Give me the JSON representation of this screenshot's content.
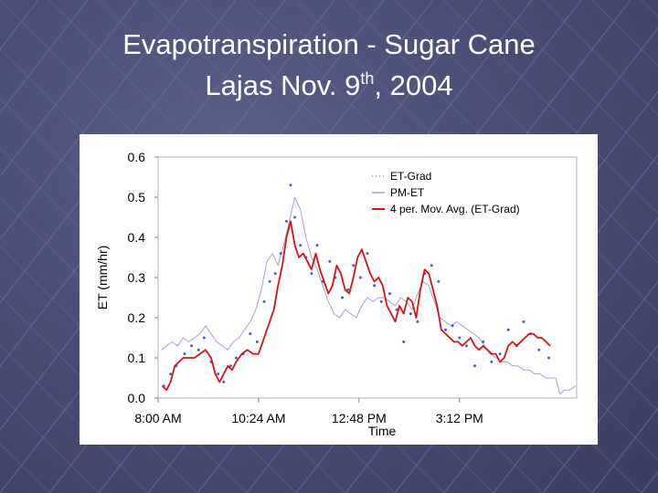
{
  "title": {
    "line1": "Evapotranspiration - Sugar Cane",
    "line2_prefix": "Lajas Nov. 9",
    "line2_sup": "th",
    "line2_suffix": ", 2004"
  },
  "colors": {
    "et_grad": "#4a5bd6",
    "pm_et": "#9aa3e6",
    "mov_avg": "#dd1111"
  },
  "chart_data": {
    "type": "line",
    "title": "",
    "xlabel": "Time",
    "ylabel": "ET (mm/hr)",
    "ylim": [
      0,
      0.6
    ],
    "xlim_minutes": [
      480,
      1080
    ],
    "y_ticks": [
      "0.0",
      "0.1",
      "0.2",
      "0.3",
      "0.4",
      "0.5",
      "0.6"
    ],
    "x_ticks": [
      {
        "label": "8:00 AM",
        "minutes": 480
      },
      {
        "label": "10:24 AM",
        "minutes": 624
      },
      {
        "label": "12:48 PM",
        "minutes": 768
      },
      {
        "label": "3:12 PM",
        "minutes": 912
      }
    ],
    "legend": {
      "position": "top-right",
      "entries": [
        "ET-Grad",
        "PM-ET",
        "4 per. Mov. Avg. (ET-Grad)"
      ]
    },
    "series": [
      {
        "name": "PM-ET",
        "style": "line",
        "x": [
          485,
          492,
          500,
          508,
          516,
          524,
          532,
          540,
          548,
          556,
          564,
          572,
          580,
          588,
          596,
          604,
          612,
          620,
          628,
          636,
          644,
          652,
          660,
          668,
          676,
          684,
          692,
          700,
          708,
          716,
          724,
          732,
          740,
          748,
          756,
          764,
          772,
          780,
          788,
          796,
          804,
          812,
          820,
          828,
          836,
          844,
          852,
          860,
          868,
          876,
          884,
          892,
          900,
          908,
          916,
          924,
          932,
          940,
          948,
          956,
          964,
          972,
          980,
          988,
          996,
          1004,
          1012,
          1020,
          1028,
          1036,
          1044,
          1050,
          1056,
          1062,
          1070,
          1078
        ],
        "values": [
          0.12,
          0.13,
          0.14,
          0.13,
          0.15,
          0.14,
          0.15,
          0.16,
          0.18,
          0.16,
          0.14,
          0.13,
          0.12,
          0.14,
          0.15,
          0.17,
          0.19,
          0.22,
          0.27,
          0.34,
          0.36,
          0.33,
          0.38,
          0.44,
          0.5,
          0.47,
          0.4,
          0.35,
          0.32,
          0.28,
          0.24,
          0.21,
          0.2,
          0.22,
          0.21,
          0.2,
          0.23,
          0.25,
          0.24,
          0.25,
          0.25,
          0.24,
          0.23,
          0.25,
          0.24,
          0.22,
          0.26,
          0.29,
          0.28,
          0.24,
          0.2,
          0.19,
          0.18,
          0.19,
          0.18,
          0.17,
          0.16,
          0.15,
          0.13,
          0.11,
          0.1,
          0.09,
          0.09,
          0.08,
          0.08,
          0.07,
          0.07,
          0.06,
          0.06,
          0.05,
          0.05,
          0.05,
          0.01,
          0.02,
          0.02,
          0.03
        ]
      },
      {
        "name": "ET-Grad",
        "style": "points",
        "x": [
          488,
          498,
          506,
          518,
          528,
          538,
          546,
          556,
          566,
          574,
          584,
          592,
          602,
          612,
          622,
          632,
          640,
          648,
          656,
          664,
          670,
          676,
          684,
          692,
          700,
          708,
          716,
          726,
          734,
          744,
          752,
          760,
          770,
          780,
          790,
          800,
          812,
          822,
          832,
          842,
          852,
          862,
          872,
          882,
          892,
          902,
          912,
          922,
          934,
          946,
          958,
          970,
          982,
          994,
          1004,
          1014,
          1026,
          1040
        ],
        "values": [
          0.03,
          0.06,
          0.08,
          0.11,
          0.13,
          0.12,
          0.15,
          0.09,
          0.06,
          0.04,
          0.08,
          0.1,
          0.11,
          0.16,
          0.14,
          0.24,
          0.29,
          0.31,
          0.36,
          0.44,
          0.53,
          0.45,
          0.38,
          0.35,
          0.31,
          0.38,
          0.29,
          0.34,
          0.3,
          0.25,
          0.27,
          0.33,
          0.3,
          0.36,
          0.28,
          0.24,
          0.26,
          0.22,
          0.14,
          0.21,
          0.19,
          0.31,
          0.33,
          0.29,
          0.17,
          0.18,
          0.15,
          0.13,
          0.08,
          0.14,
          0.09,
          0.11,
          0.17,
          0.13,
          0.19,
          0.16,
          0.12,
          0.1
        ]
      },
      {
        "name": "4 per. Mov. Avg. (ET-Grad)",
        "style": "line",
        "x": [
          486,
          492,
          498,
          504,
          510,
          516,
          524,
          532,
          540,
          548,
          556,
          562,
          568,
          574,
          580,
          586,
          592,
          600,
          608,
          616,
          624,
          632,
          640,
          646,
          652,
          658,
          664,
          670,
          676,
          682,
          688,
          694,
          700,
          706,
          712,
          718,
          724,
          730,
          736,
          742,
          748,
          754,
          760,
          766,
          772,
          778,
          784,
          790,
          796,
          802,
          808,
          814,
          820,
          826,
          832,
          838,
          844,
          850,
          856,
          862,
          868,
          874,
          880,
          886,
          892,
          898,
          904,
          910,
          916,
          922,
          928,
          934,
          940,
          946,
          952,
          958,
          964,
          970,
          976,
          982,
          988,
          994,
          1000,
          1006,
          1012,
          1018,
          1024,
          1030,
          1036,
          1042
        ],
        "values": [
          0.03,
          0.02,
          0.04,
          0.08,
          0.09,
          0.1,
          0.1,
          0.1,
          0.11,
          0.12,
          0.1,
          0.06,
          0.04,
          0.06,
          0.08,
          0.07,
          0.09,
          0.11,
          0.12,
          0.11,
          0.11,
          0.15,
          0.19,
          0.22,
          0.28,
          0.33,
          0.4,
          0.44,
          0.38,
          0.35,
          0.36,
          0.34,
          0.32,
          0.36,
          0.32,
          0.29,
          0.26,
          0.28,
          0.33,
          0.31,
          0.27,
          0.26,
          0.3,
          0.35,
          0.37,
          0.34,
          0.31,
          0.29,
          0.3,
          0.28,
          0.23,
          0.21,
          0.19,
          0.23,
          0.21,
          0.25,
          0.24,
          0.2,
          0.27,
          0.32,
          0.31,
          0.27,
          0.23,
          0.17,
          0.16,
          0.15,
          0.14,
          0.14,
          0.13,
          0.14,
          0.15,
          0.13,
          0.12,
          0.13,
          0.12,
          0.11,
          0.11,
          0.09,
          0.1,
          0.13,
          0.14,
          0.13,
          0.14,
          0.15,
          0.16,
          0.16,
          0.15,
          0.15,
          0.14,
          0.13
        ]
      }
    ]
  }
}
